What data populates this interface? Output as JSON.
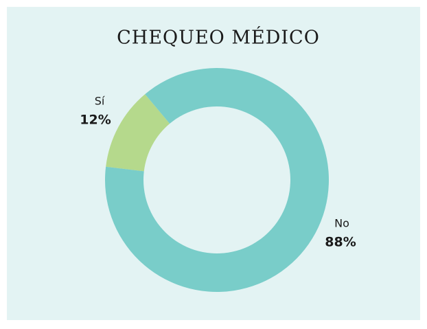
{
  "chart_data": {
    "type": "donut",
    "title": "CHEQUEO MÉDICO",
    "categories": [
      "Sí",
      "No"
    ],
    "values": [
      12,
      88
    ],
    "value_labels": [
      "12%",
      "88%"
    ],
    "colors": [
      "#b5d98c",
      "#79cdc9"
    ]
  }
}
